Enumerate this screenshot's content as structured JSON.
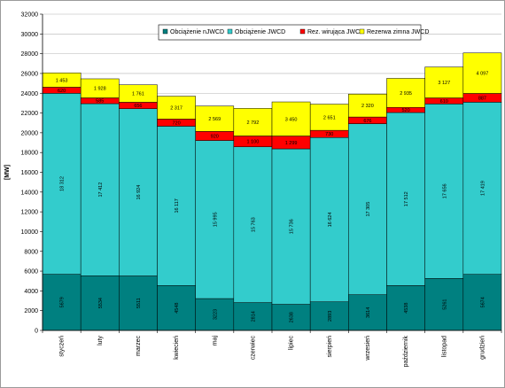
{
  "chart_data": {
    "type": "bar",
    "stacked": true,
    "title": "",
    "xlabel": "",
    "ylabel": "[MW]",
    "ylim": [
      0,
      32000
    ],
    "ytick_step": 2000,
    "grid": true,
    "legend_position": "top-right",
    "categories": [
      "styczeń",
      "luty",
      "marzec",
      "kwiecień",
      "maj",
      "czerwiec",
      "lipiec",
      "sierpień",
      "wrzesień",
      "październik",
      "listopad",
      "grudzień"
    ],
    "series": [
      {
        "name": "Obciążenie nJWCD",
        "color": "#008080",
        "values": [
          5679,
          5534,
          5511,
          4548,
          3223,
          2814,
          2638,
          2893,
          3614,
          4538,
          5261,
          5674
        ],
        "labels": [
          "5679",
          "5534",
          "5511",
          "4548",
          "3223",
          "2814",
          "2638",
          "2893",
          "3614",
          "4538",
          "5261",
          "5674"
        ]
      },
      {
        "name": "Obciążenie JWCD",
        "color": "#33CCCC",
        "values": [
          18312,
          17412,
          16924,
          16117,
          15995,
          15763,
          15736,
          16624,
          17305,
          17512,
          17656,
          17419
        ],
        "labels": [
          "18 312",
          "17 412",
          "16 924",
          "16 117",
          "15 995",
          "15 763",
          "15 736",
          "16 624",
          "17 305",
          "17 512",
          "17 656",
          "17 419"
        ]
      },
      {
        "name": "Rez. wirująca JWCD",
        "color": "#FF0000",
        "values": [
          620,
          585,
          656,
          720,
          920,
          1100,
          1299,
          730,
          676,
          520,
          610,
          887
        ],
        "labels": [
          "620",
          "585",
          "656",
          "720",
          "920",
          "1 100",
          "1 299",
          "730",
          "676",
          "520",
          "610",
          "887"
        ]
      },
      {
        "name": "Rezerwa zimna JWCD",
        "color": "#FFFF00",
        "values": [
          1453,
          1928,
          1761,
          2317,
          2569,
          2792,
          3450,
          2651,
          2320,
          2935,
          3127,
          4097
        ],
        "labels": [
          "1 453",
          "1 928",
          "1 761",
          "2 317",
          "2 569",
          "2 792",
          "3 450",
          "2 651",
          "2 320",
          "2 935",
          "3 127",
          "4 097"
        ]
      }
    ]
  }
}
